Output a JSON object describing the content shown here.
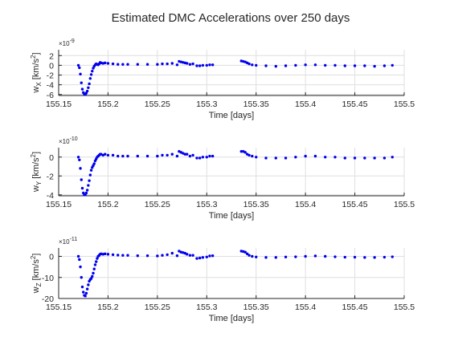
{
  "chart_data": {
    "type": "scatter",
    "title": "Estimated DMC Accelerations over 250 days",
    "grid": true,
    "marker_color": "#0000ee",
    "x_ticks": [
      "155.15",
      "155.2",
      "155.25",
      "155.3",
      "155.35",
      "155.4",
      "155.45",
      "155.5"
    ],
    "panels": [
      {
        "name": "X",
        "ylabel": "w_X [km/s^2]",
        "ylabel_main": "w",
        "ylabel_sub": "X",
        "ylabel_unit": " [km/s",
        "ylabel_sup": "2",
        "ylabel_end": "]",
        "xlabel": "Time [days]",
        "exponent_base": "×10",
        "exponent": "-9",
        "xlim": [
          155.15,
          155.5
        ],
        "ylim": [
          -6.2,
          3.2
        ],
        "yticks": [
          -6,
          -4,
          -2,
          0,
          2
        ],
        "ytick_labels": [
          "-6",
          "-4",
          "-2",
          "0",
          "2"
        ],
        "x": [
          155.17,
          155.171,
          155.172,
          155.173,
          155.174,
          155.175,
          155.176,
          155.177,
          155.178,
          155.179,
          155.18,
          155.181,
          155.182,
          155.183,
          155.184,
          155.185,
          155.186,
          155.187,
          155.188,
          155.189,
          155.19,
          155.191,
          155.192,
          155.193,
          155.195,
          155.197,
          155.2,
          155.205,
          155.21,
          155.215,
          155.22,
          155.23,
          155.24,
          155.25,
          155.255,
          155.26,
          155.265,
          155.27,
          155.272,
          155.274,
          155.276,
          155.278,
          155.28,
          155.283,
          155.286,
          155.29,
          155.293,
          155.296,
          155.3,
          155.303,
          155.306,
          155.335,
          155.337,
          155.339,
          155.341,
          155.343,
          155.346,
          155.35,
          155.36,
          155.37,
          155.38,
          155.39,
          155.4,
          155.41,
          155.42,
          155.43,
          155.44,
          155.45,
          155.46,
          155.47,
          155.48,
          155.488
        ],
        "y": [
          0.0,
          -0.5,
          -1.8,
          -3.6,
          -4.9,
          -5.6,
          -5.9,
          -6.0,
          -5.7,
          -5.3,
          -4.6,
          -3.8,
          -2.7,
          -1.9,
          -1.2,
          -0.6,
          -0.2,
          0.1,
          0.3,
          0.2,
          0.1,
          0.3,
          0.6,
          0.5,
          0.4,
          0.5,
          0.4,
          0.3,
          0.2,
          0.2,
          0.2,
          0.2,
          0.2,
          0.2,
          0.3,
          0.3,
          0.4,
          0.1,
          0.8,
          0.7,
          0.6,
          0.5,
          0.4,
          0.2,
          0.3,
          -0.1,
          -0.1,
          0.0,
          0.0,
          0.1,
          0.1,
          0.9,
          0.8,
          0.7,
          0.5,
          0.3,
          0.1,
          0.0,
          -0.1,
          -0.2,
          -0.1,
          0.0,
          0.1,
          0.1,
          0.0,
          0.0,
          -0.1,
          -0.1,
          -0.1,
          -0.2,
          -0.1,
          0.0
        ]
      },
      {
        "name": "Y",
        "ylabel": "w_Y [km/s^2]",
        "ylabel_main": "w",
        "ylabel_sub": "Y",
        "ylabel_unit": " [km/s",
        "ylabel_sup": "2",
        "ylabel_end": "]",
        "xlabel": "Time [days]",
        "exponent_base": "×10",
        "exponent": "-10",
        "xlim": [
          155.15,
          155.5
        ],
        "ylim": [
          -4.1,
          1.0
        ],
        "yticks": [
          -4,
          -2,
          0
        ],
        "ytick_labels": [
          "-4",
          "-2",
          "0"
        ],
        "x": [
          155.17,
          155.171,
          155.172,
          155.173,
          155.174,
          155.175,
          155.176,
          155.177,
          155.178,
          155.179,
          155.18,
          155.181,
          155.182,
          155.183,
          155.184,
          155.185,
          155.186,
          155.187,
          155.188,
          155.189,
          155.19,
          155.191,
          155.192,
          155.193,
          155.195,
          155.197,
          155.2,
          155.205,
          155.21,
          155.215,
          155.22,
          155.23,
          155.24,
          155.25,
          155.255,
          155.26,
          155.265,
          155.27,
          155.272,
          155.274,
          155.276,
          155.278,
          155.28,
          155.283,
          155.286,
          155.29,
          155.293,
          155.296,
          155.3,
          155.303,
          155.306,
          155.335,
          155.337,
          155.339,
          155.341,
          155.343,
          155.346,
          155.35,
          155.36,
          155.37,
          155.38,
          155.39,
          155.4,
          155.41,
          155.42,
          155.43,
          155.44,
          155.45,
          155.46,
          155.47,
          155.48,
          155.488
        ],
        "y": [
          0.0,
          -0.3,
          -1.2,
          -2.4,
          -3.3,
          -3.8,
          -4.0,
          -4.0,
          -3.8,
          -3.5,
          -3.0,
          -2.5,
          -1.9,
          -1.4,
          -1.1,
          -0.9,
          -0.7,
          -0.4,
          -0.2,
          0.0,
          0.1,
          0.2,
          0.3,
          0.3,
          0.2,
          0.3,
          0.2,
          0.2,
          0.1,
          0.1,
          0.1,
          0.1,
          0.1,
          0.1,
          0.2,
          0.2,
          0.3,
          0.1,
          0.6,
          0.5,
          0.4,
          0.3,
          0.3,
          0.1,
          0.2,
          -0.1,
          -0.1,
          0.0,
          0.0,
          0.1,
          0.1,
          0.6,
          0.6,
          0.5,
          0.3,
          0.2,
          0.1,
          0.0,
          -0.1,
          -0.1,
          -0.1,
          0.0,
          0.1,
          0.1,
          0.0,
          0.0,
          -0.1,
          -0.1,
          -0.1,
          -0.1,
          -0.1,
          0.0
        ]
      },
      {
        "name": "Z",
        "ylabel": "w_Z [km/s^2]",
        "ylabel_main": "w",
        "ylabel_sub": "Z",
        "ylabel_unit": " [km/s",
        "ylabel_sup": "2",
        "ylabel_end": "]",
        "xlabel": "Time [days]",
        "exponent_base": "×10",
        "exponent": "-11",
        "xlim": [
          155.15,
          155.5
        ],
        "ylim": [
          -20,
          4
        ],
        "yticks": [
          -20,
          -10,
          0
        ],
        "ytick_labels": [
          "-20",
          "-10",
          "0"
        ],
        "x": [
          155.17,
          155.171,
          155.172,
          155.173,
          155.174,
          155.175,
          155.176,
          155.177,
          155.178,
          155.179,
          155.18,
          155.181,
          155.182,
          155.183,
          155.184,
          155.185,
          155.186,
          155.187,
          155.188,
          155.189,
          155.19,
          155.191,
          155.192,
          155.193,
          155.195,
          155.197,
          155.2,
          155.205,
          155.21,
          155.215,
          155.22,
          155.23,
          155.24,
          155.25,
          155.255,
          155.26,
          155.265,
          155.27,
          155.272,
          155.274,
          155.276,
          155.278,
          155.28,
          155.283,
          155.286,
          155.29,
          155.293,
          155.296,
          155.3,
          155.303,
          155.306,
          155.335,
          155.337,
          155.339,
          155.341,
          155.343,
          155.346,
          155.35,
          155.36,
          155.37,
          155.38,
          155.39,
          155.4,
          155.41,
          155.42,
          155.43,
          155.44,
          155.45,
          155.46,
          155.47,
          155.48,
          155.488
        ],
        "y": [
          0.0,
          -1.5,
          -5.0,
          -10.0,
          -14.5,
          -17.0,
          -18.5,
          -18.8,
          -17.5,
          -15.5,
          -13.5,
          -11.8,
          -11.0,
          -10.5,
          -9.5,
          -8.0,
          -6.0,
          -4.0,
          -2.5,
          -1.0,
          0.0,
          0.5,
          1.0,
          1.2,
          1.0,
          1.2,
          1.0,
          0.8,
          0.6,
          0.5,
          0.5,
          0.3,
          0.3,
          0.2,
          0.5,
          0.8,
          1.5,
          0.3,
          2.5,
          2.0,
          1.8,
          1.5,
          1.0,
          0.5,
          0.5,
          -1.0,
          -0.8,
          -0.5,
          -0.3,
          0.2,
          0.3,
          2.5,
          2.3,
          2.0,
          1.2,
          0.5,
          0.0,
          -0.3,
          -0.5,
          -0.5,
          -0.3,
          -0.2,
          0.0,
          0.2,
          0.0,
          -0.2,
          -0.4,
          -0.4,
          -0.5,
          -0.5,
          -0.4,
          -0.2
        ]
      }
    ]
  }
}
